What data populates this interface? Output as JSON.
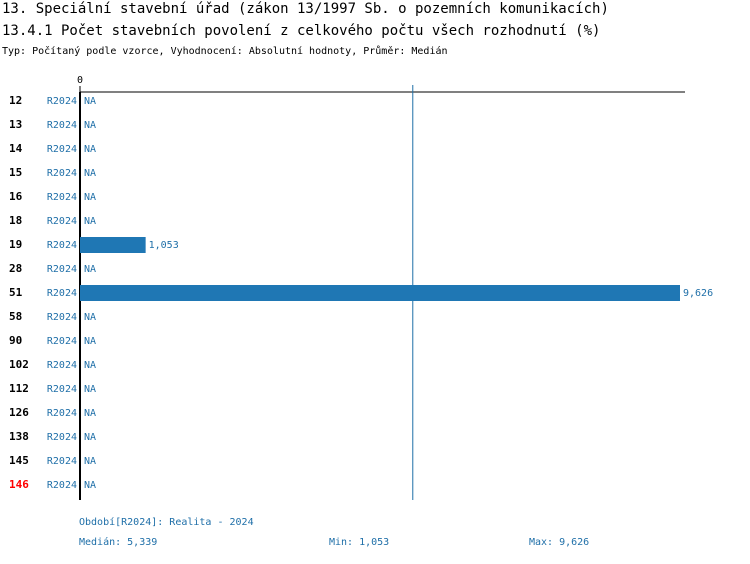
{
  "chart_data": {
    "type": "bar",
    "orientation": "horizontal",
    "title": "13. Speciální stavební úřad (zákon 13/1997 Sb. o pozemních komunikacích)",
    "subtitle": "13.4.1 Počet stavebních povolení z celkového počtu všech rozhodnutí (%)",
    "note": "Typ: Počítaný podle vzorce, Vyhodnocení: Absolutní hodnoty, Průměr: Medián",
    "categories": [
      "12",
      "13",
      "14",
      "15",
      "16",
      "18",
      "19",
      "28",
      "51",
      "58",
      "90",
      "102",
      "112",
      "126",
      "138",
      "145",
      "146"
    ],
    "series_label": "R2024",
    "values": [
      null,
      null,
      null,
      null,
      null,
      null,
      1053,
      null,
      9626,
      null,
      null,
      null,
      null,
      null,
      null,
      null,
      null
    ],
    "value_labels": [
      "NA",
      "NA",
      "NA",
      "NA",
      "NA",
      "NA",
      "1,053",
      "NA",
      "9,626",
      "NA",
      "NA",
      "NA",
      "NA",
      "NA",
      "NA",
      "NA",
      "NA"
    ],
    "color": "#1f77b4",
    "highlight_category": "146",
    "highlight_color": "#ff0000",
    "xlim": [
      0,
      9626
    ],
    "xticks": [
      0
    ],
    "period": "Období[R2024]: Realita - 2024",
    "median": {
      "label": "Medián: 5,339",
      "value": 5339
    },
    "min_label": "Min: 1,053",
    "max_label": "Max: 9,626"
  }
}
